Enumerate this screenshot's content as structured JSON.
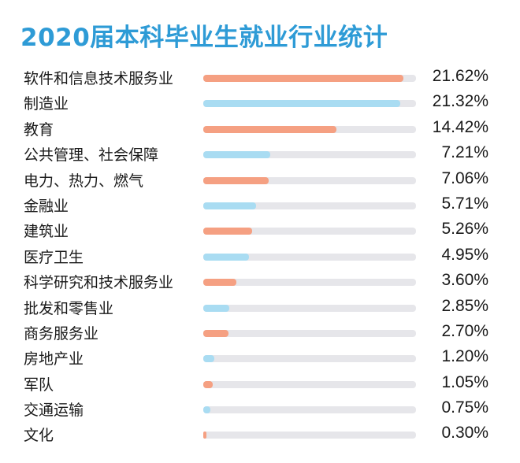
{
  "colors": {
    "title": "#2e9bd6",
    "bar_orange": "#f5a082",
    "bar_blue": "#a9dcf2",
    "track": "#e6e6ea"
  },
  "chart_data": {
    "type": "bar",
    "orientation": "horizontal",
    "title": "2020届本科毕业生就业行业统计",
    "xlim": [
      0,
      23
    ],
    "categories": [
      "软件和信息技术服务业",
      "制造业",
      "教育",
      "公共管理、社会保障",
      "电力、热力、燃气",
      "金融业",
      "建筑业",
      "医疗卫生",
      "科学研究和技术服务业",
      "批发和零售业",
      "商务服务业",
      "房地产业",
      "军队",
      "交通运输",
      "文化"
    ],
    "values": [
      21.62,
      21.32,
      14.42,
      7.21,
      7.06,
      5.71,
      5.26,
      4.95,
      3.6,
      2.85,
      2.7,
      1.2,
      1.05,
      0.75,
      0.3
    ],
    "value_labels": [
      "21.62%",
      "21.32%",
      "14.42%",
      "7.21%",
      "7.06%",
      "5.71%",
      "5.26%",
      "4.95%",
      "3.60%",
      "2.85%",
      "2.70%",
      "1.20%",
      "1.05%",
      "0.75%",
      "0.30%"
    ],
    "bar_color_pattern": [
      "#f5a082",
      "#a9dcf2"
    ],
    "grid": false,
    "legend": "none"
  }
}
